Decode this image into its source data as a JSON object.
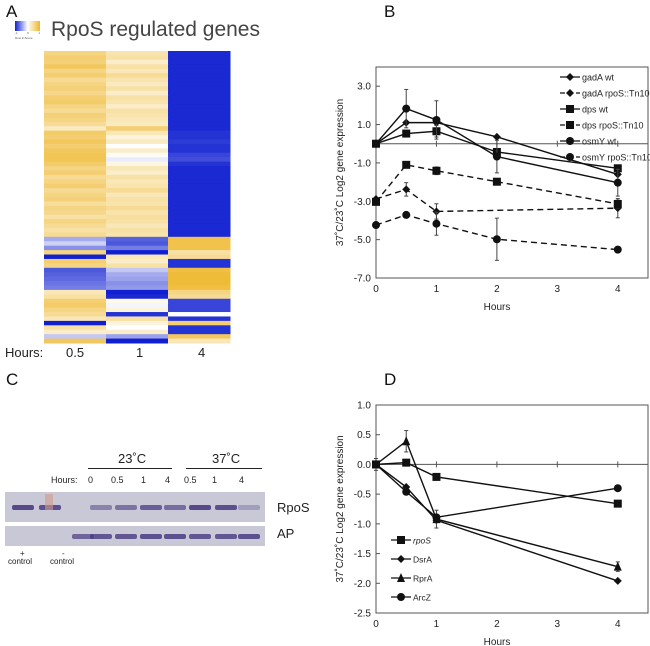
{
  "panels": {
    "a": "A",
    "b": "B",
    "c": "C",
    "d": "D"
  },
  "heatmap": {
    "title": "RpoS regulated genes",
    "key_ticks": [
      "-1",
      "0",
      "1"
    ],
    "key_label": "Row Z-Score",
    "colors": {
      "low": "#1020d0",
      "mid": "#ffffff",
      "high": "#eeb628"
    },
    "row_header": "Hours:",
    "columns": [
      "0.5",
      "1",
      "4"
    ],
    "rows": [
      [
        0.7,
        0.45,
        -1.15
      ],
      [
        0.8,
        0.5,
        -1.15
      ],
      [
        0.75,
        0.3,
        -1.15
      ],
      [
        0.9,
        0.5,
        -1.15
      ],
      [
        0.7,
        0.4,
        -1.15
      ],
      [
        0.8,
        0.6,
        -1.15
      ],
      [
        0.6,
        0.45,
        -1.15
      ],
      [
        0.7,
        0.35,
        -1.15
      ],
      [
        0.75,
        0.5,
        -1.15
      ],
      [
        0.65,
        0.3,
        -1.15
      ],
      [
        0.8,
        0.5,
        -1.15
      ],
      [
        0.85,
        0.45,
        -1.15
      ],
      [
        0.7,
        0.3,
        -1.15
      ],
      [
        0.6,
        0.5,
        -1.15
      ],
      [
        0.75,
        0.45,
        -1.15
      ],
      [
        0.7,
        0.4,
        -1.15
      ],
      [
        0.6,
        0.35,
        -1.15
      ],
      [
        0.35,
        0.8,
        -1.15
      ],
      [
        0.85,
        0.4,
        -1.1
      ],
      [
        0.8,
        0.2,
        -1.1
      ],
      [
        0.9,
        0.35,
        -1.05
      ],
      [
        0.8,
        0.0,
        -1.1
      ],
      [
        0.9,
        0.3,
        -1.1
      ],
      [
        0.95,
        0.05,
        -1.0
      ],
      [
        0.95,
        -0.1,
        -0.95
      ],
      [
        0.85,
        0.15,
        -1.1
      ],
      [
        0.7,
        0.4,
        -1.15
      ],
      [
        0.8,
        0.3,
        -1.15
      ],
      [
        0.6,
        0.5,
        -1.15
      ],
      [
        0.7,
        0.4,
        -1.15
      ],
      [
        0.8,
        0.45,
        -1.15
      ],
      [
        0.6,
        0.6,
        -1.15
      ],
      [
        0.7,
        0.4,
        -1.15
      ],
      [
        0.75,
        0.5,
        -1.15
      ],
      [
        0.55,
        0.45,
        -1.15
      ],
      [
        0.7,
        0.6,
        -1.15
      ],
      [
        0.65,
        0.45,
        -1.15
      ],
      [
        0.5,
        0.55,
        -1.15
      ],
      [
        0.7,
        0.5,
        -1.15
      ],
      [
        0.6,
        0.4,
        -1.15
      ],
      [
        0.5,
        0.5,
        -1.15
      ],
      [
        0.6,
        0.45,
        -1.15
      ],
      [
        -0.45,
        -0.85,
        1.0
      ],
      [
        -0.25,
        -0.9,
        1.0
      ],
      [
        -0.6,
        -0.7,
        1.0
      ],
      [
        0.7,
        -1.2,
        0.5
      ],
      [
        -1.2,
        0.4,
        0.6
      ],
      [
        0.8,
        0.3,
        -1.1
      ],
      [
        0.7,
        0.5,
        -1.1
      ],
      [
        -0.9,
        -0.3,
        1.05
      ],
      [
        -0.85,
        -0.45,
        1.1
      ],
      [
        -0.8,
        -0.5,
        1.1
      ],
      [
        -0.75,
        -0.6,
        1.1
      ],
      [
        -0.7,
        -0.55,
        1.05
      ],
      [
        0.4,
        -1.2,
        0.7
      ],
      [
        0.5,
        -1.15,
        0.6
      ],
      [
        0.8,
        0.1,
        -1.0
      ],
      [
        0.85,
        -0.05,
        -1.0
      ],
      [
        0.7,
        0.2,
        -1.0
      ],
      [
        0.6,
        -1.1,
        0.0
      ],
      [
        0.4,
        0.5,
        -1.1
      ],
      [
        -1.2,
        0.2,
        0.8
      ],
      [
        0.5,
        0.0,
        -1.1
      ],
      [
        0.3,
        0.3,
        -1.1
      ],
      [
        -0.3,
        -0.5,
        0.9
      ],
      [
        0.9,
        -1.2,
        0.4
      ]
    ]
  },
  "gel": {
    "temp_groups": [
      "23˚C",
      "37˚C"
    ],
    "hours_label": "Hours:",
    "lane_hours": [
      "0",
      "0.5",
      "1",
      "4",
      "0.5",
      "1",
      "4"
    ],
    "row_labels": [
      "RpoS",
      "AP"
    ],
    "plus_control": "+",
    "minus_control": "-",
    "control_label": "control",
    "rpos_band_intensity": [
      0.9,
      0.85,
      0,
      0.5,
      0.6,
      0.75,
      0.65,
      0.9,
      0.85,
      0.3
    ],
    "ap_band_intensity": [
      0,
      0,
      0.7,
      0.8,
      0.8,
      0.85,
      0.85,
      0.8,
      0.8,
      0.85
    ]
  },
  "chart_data": [
    {
      "type": "line",
      "panel": "B",
      "xlabel": "Hours",
      "ylabel": "37˚C/23˚C Log2 gene expression",
      "xlim": [
        0,
        4.5
      ],
      "ylim": [
        -7,
        4
      ],
      "xticks": [
        "0",
        "1",
        "2",
        "3",
        "4"
      ],
      "yticks": [
        "3.0",
        "1.0",
        "-1.0",
        "-3.0",
        "-5.0",
        "-7.0"
      ],
      "legend": "top-right",
      "series": [
        {
          "name": "gadA wt",
          "marker": "diamond",
          "dash": false,
          "x": [
            0,
            0.5,
            1,
            2,
            4
          ],
          "y": [
            0,
            1.1,
            1.1,
            0.36,
            -1.6
          ],
          "err": [
            0,
            0,
            0,
            0,
            0
          ]
        },
        {
          "name": "gadA rpoS::Tn10",
          "marker": "diamond",
          "dash": true,
          "x": [
            0,
            0.5,
            1,
            4
          ],
          "y": [
            -2.88,
            -2.38,
            -3.53,
            -3.36
          ],
          "err": [
            0,
            0.35,
            0.4,
            0.5
          ]
        },
        {
          "name": "dps wt",
          "marker": "square",
          "dash": false,
          "x": [
            0,
            0.5,
            1,
            2,
            4
          ],
          "y": [
            0,
            0.53,
            0.65,
            -0.43,
            -1.28
          ],
          "err": [
            0,
            0,
            0.3,
            0,
            0.15
          ]
        },
        {
          "name": "dps rpoS::Tn10",
          "marker": "square",
          "dash": true,
          "x": [
            0,
            0.5,
            1,
            2,
            4
          ],
          "y": [
            -3.03,
            -1.1,
            -1.41,
            -1.98,
            -3.14
          ],
          "err": [
            0,
            0.1,
            0.2,
            0,
            0.2
          ]
        },
        {
          "name": "osmY wt",
          "marker": "circle",
          "dash": false,
          "x": [
            0,
            0.5,
            1,
            2,
            4
          ],
          "y": [
            0,
            1.83,
            1.24,
            -0.67,
            -2.03
          ],
          "err": [
            0,
            1.0,
            1.0,
            0.85,
            0.7
          ]
        },
        {
          "name": "osmY rpoS::Tn10",
          "marker": "circle",
          "dash": true,
          "x": [
            0,
            0.5,
            1,
            2,
            4
          ],
          "y": [
            -4.24,
            -3.71,
            -4.17,
            -4.98,
            -5.52
          ],
          "err": [
            0,
            0,
            0.6,
            1.1,
            0
          ]
        }
      ]
    },
    {
      "type": "line",
      "panel": "D",
      "xlabel": "Hours",
      "ylabel": "37˚C/23˚C Log2 gene expression",
      "xlim": [
        0,
        4.5
      ],
      "ylim": [
        -2.5,
        1.0
      ],
      "xticks": [
        "0",
        "1",
        "2",
        "3",
        "4"
      ],
      "yticks": [
        "1.0",
        "0.5",
        "0.0",
        "-0.5",
        "-1.0",
        "-1.5",
        "-2.0",
        "-2.5"
      ],
      "legend": "bottom-left",
      "series": [
        {
          "name": "rpoS",
          "marker": "square",
          "x": [
            0,
            0.5,
            1,
            4
          ],
          "y": [
            0,
            0.03,
            -0.21,
            -0.66
          ],
          "err": [
            0.1,
            0,
            0,
            0
          ]
        },
        {
          "name": "DsrA",
          "marker": "diamond",
          "x": [
            0,
            0.5,
            1,
            4
          ],
          "y": [
            0,
            -0.38,
            -0.94,
            -1.96
          ],
          "err": [
            0,
            0,
            0,
            0
          ]
        },
        {
          "name": "RprA",
          "marker": "triangle",
          "x": [
            0,
            0.5,
            1,
            4
          ],
          "y": [
            0,
            0.39,
            -0.92,
            -1.72
          ],
          "err": [
            0,
            0.18,
            0.15,
            0.08
          ]
        },
        {
          "name": "ArcZ",
          "marker": "circle",
          "x": [
            0,
            0.5,
            1,
            4
          ],
          "y": [
            0,
            -0.46,
            -0.89,
            -0.4
          ],
          "err": [
            0,
            0,
            0,
            0
          ]
        }
      ]
    }
  ]
}
